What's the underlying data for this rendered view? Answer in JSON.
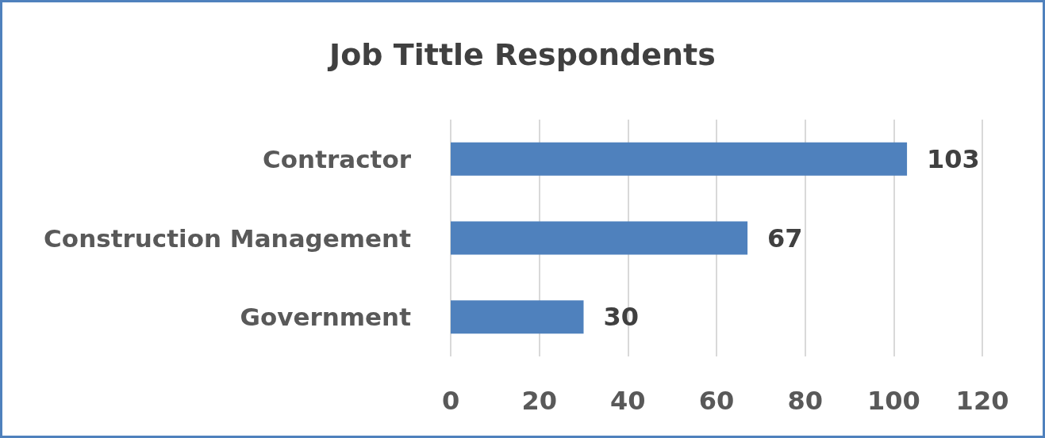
{
  "chart_data": {
    "type": "bar",
    "title": "Job Tittle Respondents",
    "orientation": "horizontal",
    "categories": [
      "Contractor",
      "Construction Management",
      "Government"
    ],
    "values": [
      103,
      67,
      30
    ],
    "color": "#4f81bd",
    "data_labels": true,
    "xlim": [
      0,
      120
    ],
    "xticks": [
      0,
      20,
      40,
      60,
      80,
      100,
      120
    ],
    "grid": "x"
  }
}
